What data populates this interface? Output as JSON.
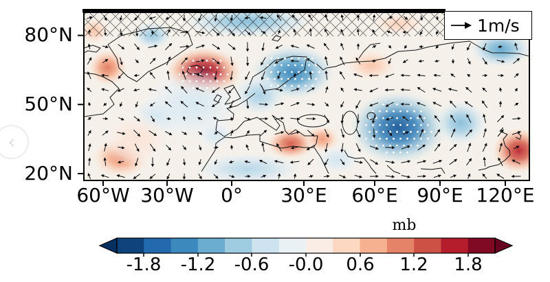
{
  "figure": {
    "map": {
      "y_axis_labels": [
        "80°N",
        "50°N",
        "20°N"
      ],
      "x_axis_labels": [
        "60°W",
        "30°W",
        "0°",
        "30°E",
        "60°E",
        "90°E",
        "120°E"
      ]
    },
    "legend": {
      "reference_label": "1m/s"
    },
    "colorbar": {
      "units_label": "mb",
      "tick_labels": [
        "-1.8",
        "-1.2",
        "-0.6",
        "-0.0",
        "0.6",
        "1.2",
        "1.8"
      ]
    },
    "chart_data": {
      "type": "heatmap",
      "subtype": "filled-contour pressure-anomaly map with wind-vector (quiver) overlay",
      "units": "mb",
      "projection": "equirectangular",
      "lon_range": [
        -60,
        120
      ],
      "lat_range": [
        20,
        90
      ],
      "x_ticks_deg": [
        -60,
        -30,
        0,
        30,
        60,
        90,
        120
      ],
      "y_ticks_deg": [
        80,
        50,
        20
      ],
      "reference_vector": {
        "value": 1,
        "units": "m/s"
      },
      "colormap": "RdBu_r",
      "color_levels": [
        -2.1,
        -1.8,
        -1.5,
        -1.2,
        -0.9,
        -0.6,
        -0.3,
        0,
        0.3,
        0.6,
        0.9,
        1.2,
        1.5,
        1.8,
        2.1
      ],
      "colormap_anchors": [
        {
          "v": -2.1,
          "hex": "#053061"
        },
        {
          "v": -1.68,
          "hex": "#2166ac"
        },
        {
          "v": -1.26,
          "hex": "#4393c3"
        },
        {
          "v": -0.84,
          "hex": "#92c5de"
        },
        {
          "v": -0.42,
          "hex": "#d1e5f0"
        },
        {
          "v": 0,
          "hex": "#f7f7f7"
        },
        {
          "v": 0.42,
          "hex": "#fddbc7"
        },
        {
          "v": 0.84,
          "hex": "#f4a582"
        },
        {
          "v": 1.26,
          "hex": "#d6604d"
        },
        {
          "v": 1.68,
          "hex": "#b2182b"
        },
        {
          "v": 2.1,
          "hex": "#67001f"
        }
      ],
      "anomaly_centers": [
        {
          "name": "iceland-greenland-high",
          "lon": -15,
          "lat": 64,
          "value": 1.9,
          "rx_deg": 17,
          "ry_deg": 11,
          "stippled": true
        },
        {
          "name": "labrador-high",
          "lon": -58,
          "lat": 66,
          "value": 1.1,
          "rx_deg": 9,
          "ry_deg": 8,
          "stippled": false
        },
        {
          "name": "scandinavia-low",
          "lon": 25,
          "lat": 64,
          "value": -1.4,
          "rx_deg": 19,
          "ry_deg": 12,
          "stippled": true
        },
        {
          "name": "central-asia-low",
          "lon": 72,
          "lat": 40,
          "value": -1.8,
          "rx_deg": 22,
          "ry_deg": 16,
          "stippled": true
        },
        {
          "name": "east-mediterranean-high",
          "lon": 24,
          "lat": 33,
          "value": 1.3,
          "rx_deg": 11,
          "ry_deg": 7,
          "stippled": false
        },
        {
          "name": "middle-east-high",
          "lon": 38,
          "lat": 35,
          "value": 0.9,
          "rx_deg": 8,
          "ry_deg": 6,
          "stippled": false
        },
        {
          "name": "subtropical-atlantic-high",
          "lon": -52,
          "lat": 27,
          "value": 1.0,
          "rx_deg": 13,
          "ry_deg": 9,
          "stippled": false
        },
        {
          "name": "east-china-high",
          "lon": 126,
          "lat": 30,
          "value": 1.6,
          "rx_deg": 12,
          "ry_deg": 10,
          "stippled": false
        },
        {
          "name": "kara-sea-low",
          "lon": 118,
          "lat": 74,
          "value": -1.1,
          "rx_deg": 14,
          "ry_deg": 8,
          "stippled": false
        },
        {
          "name": "arctic-low",
          "lon": 5,
          "lat": 86,
          "value": -0.9,
          "rx_deg": 30,
          "ry_deg": 7,
          "stippled": false
        },
        {
          "name": "baffin-low",
          "lon": -38,
          "lat": 80,
          "value": -0.8,
          "rx_deg": 9,
          "ry_deg": 6,
          "stippled": false
        },
        {
          "name": "top-left-high",
          "lon": -64,
          "lat": 82,
          "value": 0.6,
          "rx_deg": 7,
          "ry_deg": 6,
          "stippled": false
        },
        {
          "name": "urals-high",
          "lon": 60,
          "lat": 67,
          "value": 0.6,
          "rx_deg": 12,
          "ry_deg": 7,
          "stippled": false
        },
        {
          "name": "taymyr-high",
          "lon": 72,
          "lat": 85,
          "value": 0.5,
          "rx_deg": 12,
          "ry_deg": 5,
          "stippled": false
        },
        {
          "name": "north-africa-low",
          "lon": 5,
          "lat": 22,
          "value": -0.6,
          "rx_deg": 25,
          "ry_deg": 7,
          "stippled": false
        },
        {
          "name": "mid-atlantic-low",
          "lon": -35,
          "lat": 45,
          "value": -0.5,
          "rx_deg": 12,
          "ry_deg": 9,
          "stippled": false
        },
        {
          "name": "iberia-low",
          "lon": -10,
          "lat": 37,
          "value": -0.4,
          "rx_deg": 8,
          "ry_deg": 6,
          "stippled": false
        },
        {
          "name": "arabia-low",
          "lon": 45,
          "lat": 26,
          "value": -0.4,
          "rx_deg": 10,
          "ry_deg": 6,
          "stippled": false
        },
        {
          "name": "east-asia-low",
          "lon": 100,
          "lat": 42,
          "value": -0.9,
          "rx_deg": 12,
          "ry_deg": 10,
          "stippled": false
        },
        {
          "name": "europe-low-bridge",
          "lon": 10,
          "lat": 54,
          "value": -0.7,
          "rx_deg": 12,
          "ry_deg": 9,
          "stippled": false
        },
        {
          "name": "atlantic-weak-low",
          "lon": -20,
          "lat": 50,
          "value": -0.35,
          "rx_deg": 22,
          "ry_deg": 16,
          "stippled": false
        },
        {
          "name": "west-subtropic-weak-high",
          "lon": -45,
          "lat": 35,
          "value": 0.3,
          "rx_deg": 16,
          "ry_deg": 12,
          "stippled": false
        }
      ],
      "hatching": "cross-hatched band along the northern (top) edge of the map",
      "stippling": "white dots over statistically significant anomaly centers"
    }
  },
  "overlay": {
    "prev_chevron": "‹"
  }
}
